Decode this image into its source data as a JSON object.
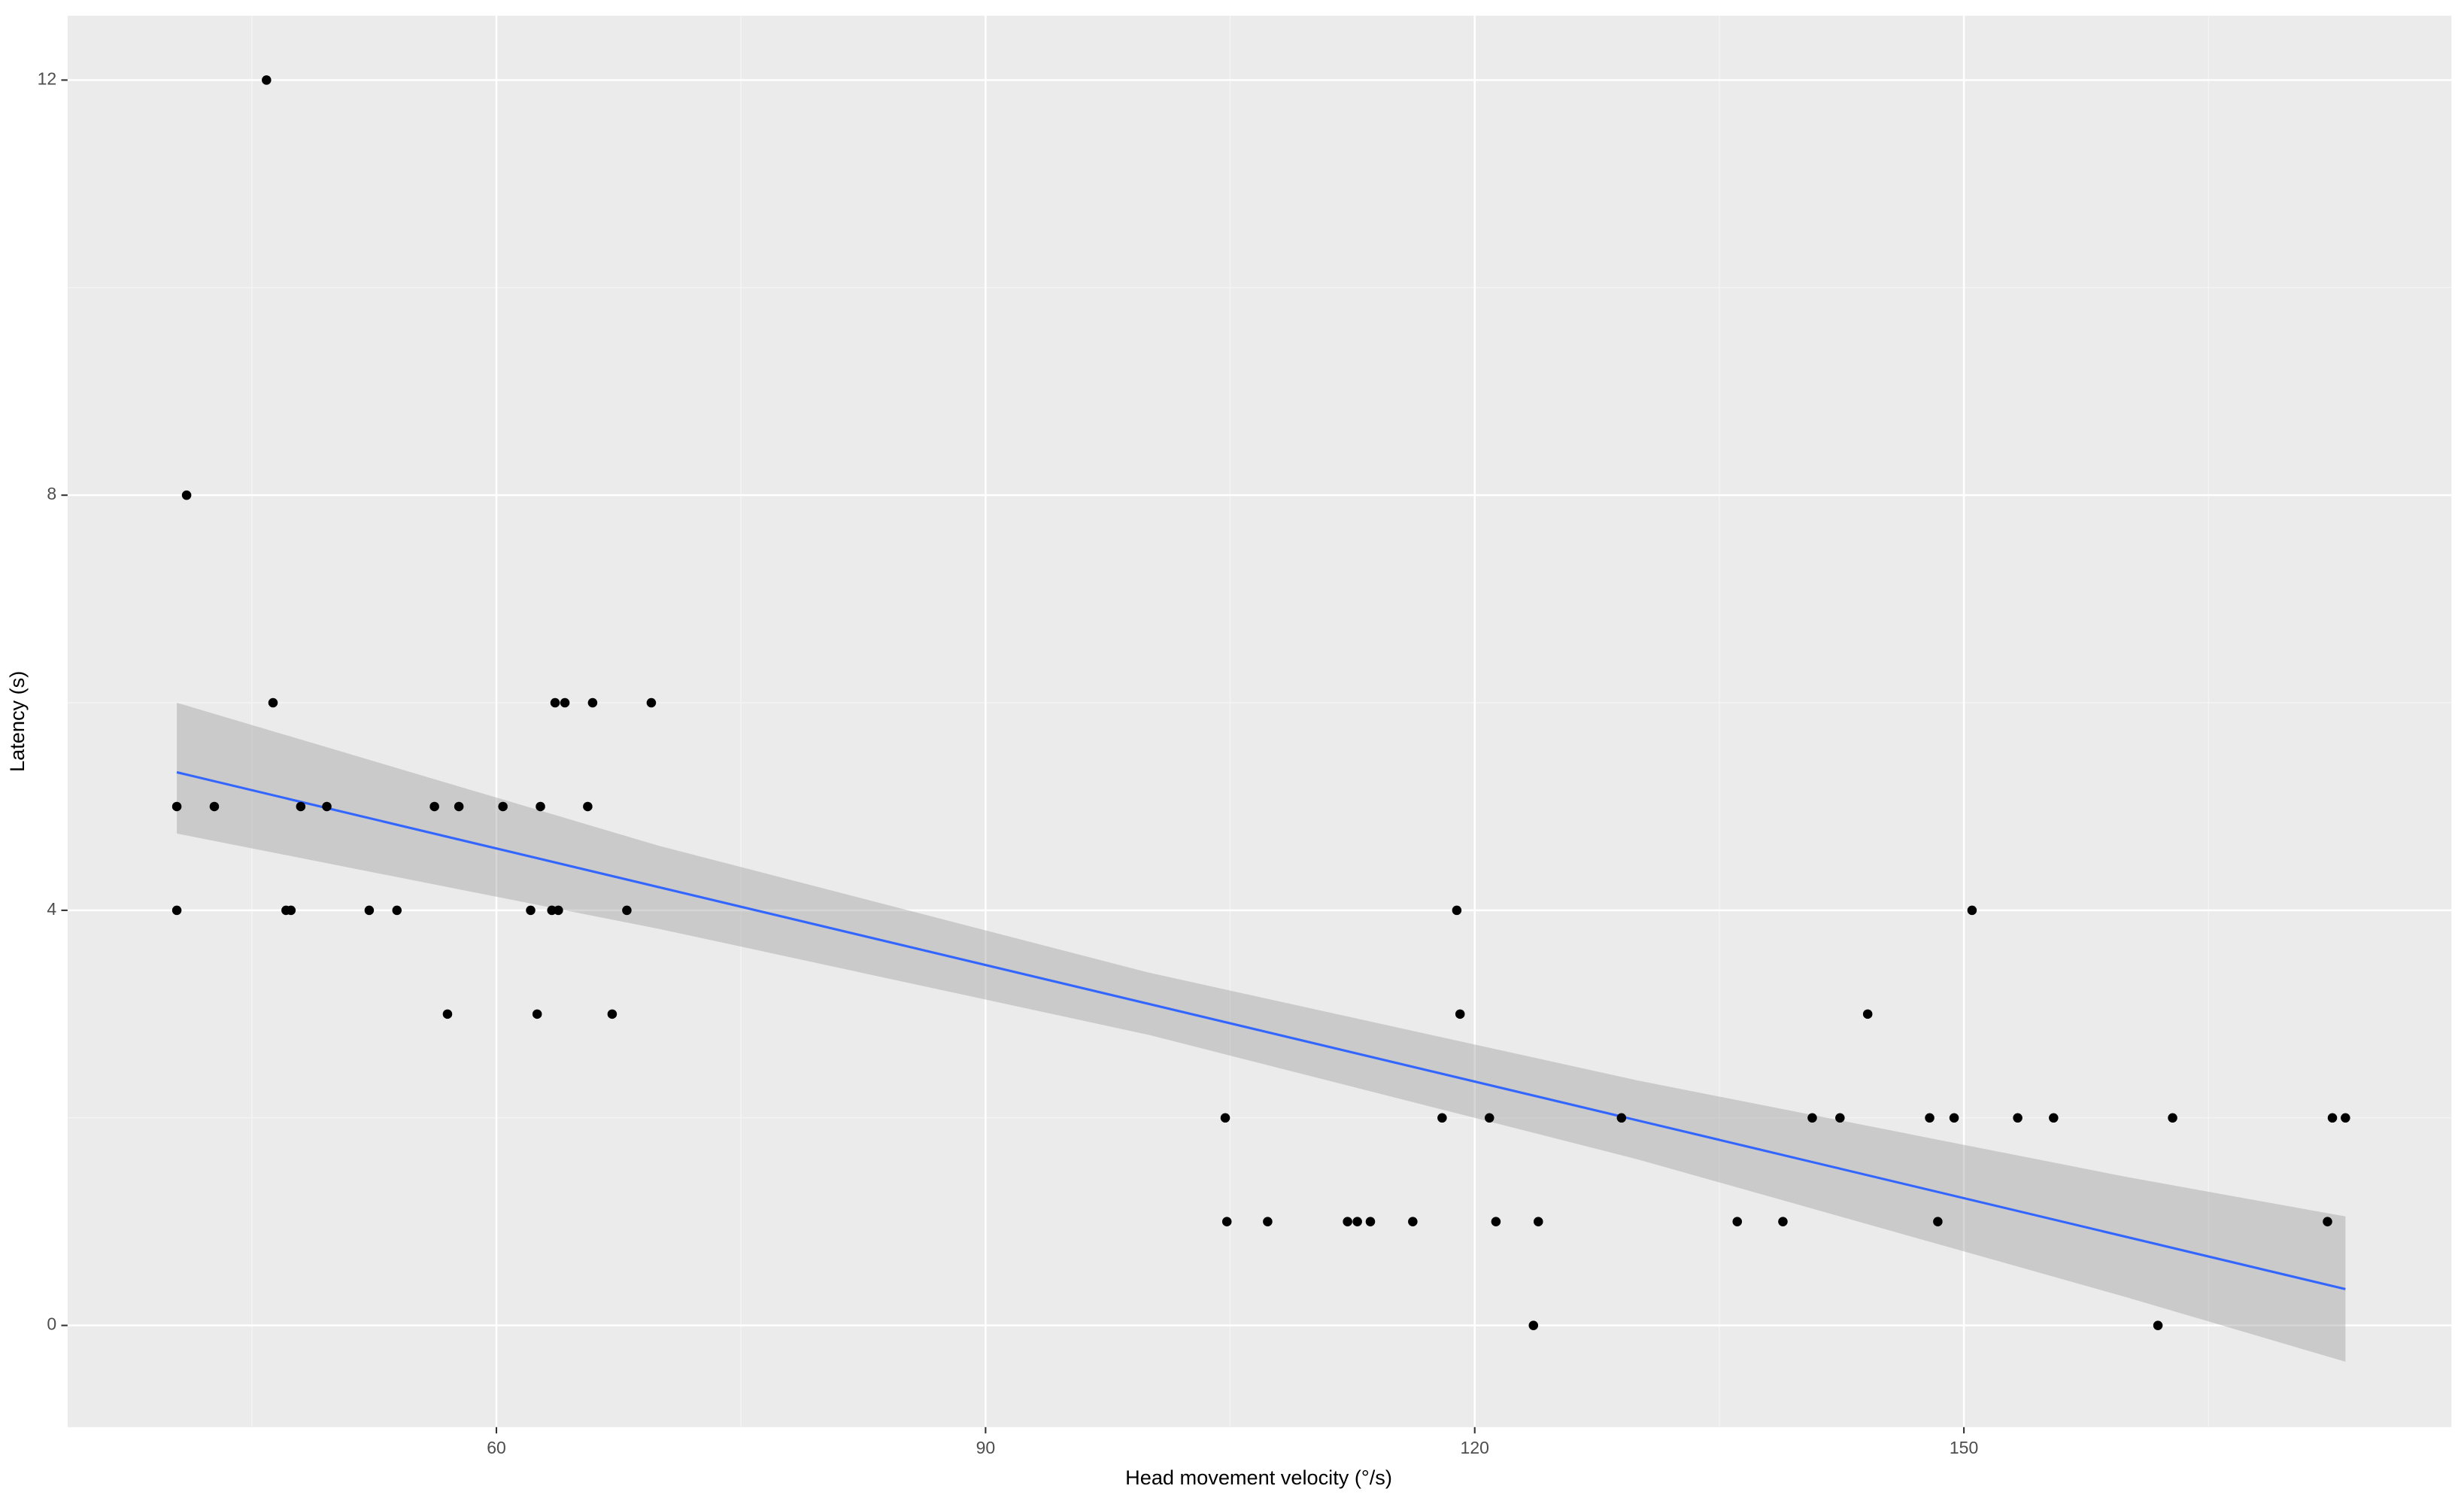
{
  "chart_data": {
    "type": "scatter",
    "x_label": "Head movement velocity (°/s)",
    "y_label": "Latency (s)",
    "x": [
      40.4,
      40.4,
      41.0,
      42.7,
      45.9,
      46.3,
      47.1,
      47.4,
      48.0,
      49.6,
      52.2,
      53.9,
      56.2,
      57.0,
      57.7,
      60.4,
      62.1,
      62.5,
      62.7,
      63.4,
      63.6,
      63.8,
      64.2,
      65.6,
      65.9,
      67.1,
      68.0,
      69.5,
      104.7,
      104.8,
      107.3,
      112.2,
      112.8,
      113.6,
      116.2,
      118.0,
      118.9,
      119.1,
      120.9,
      121.3,
      123.6,
      123.9,
      129.0,
      136.1,
      138.9,
      140.7,
      142.4,
      144.1,
      147.9,
      148.4,
      149.4,
      150.5,
      153.3,
      155.5,
      161.9,
      162.8,
      172.3,
      172.6,
      173.4
    ],
    "values": [
      5,
      4,
      8,
      5,
      12,
      6,
      4,
      4,
      5,
      5,
      4,
      4,
      5,
      3,
      5,
      5,
      4,
      3,
      5,
      4,
      6,
      4,
      6,
      5,
      6,
      3,
      4,
      6,
      2,
      1,
      1,
      1,
      1,
      1,
      1,
      2,
      4,
      3,
      2,
      1,
      0,
      1,
      2,
      1,
      1,
      2,
      2,
      3,
      2,
      1,
      2,
      4,
      2,
      2,
      0,
      2,
      1,
      2,
      2
    ],
    "color": "#000000",
    "fit": {
      "x": [
        40.4,
        173.4
      ],
      "y": [
        5.33,
        0.35
      ],
      "color": "#3366ff"
    },
    "band": {
      "x": [
        40.4,
        70,
        100,
        130,
        160,
        173.4
      ],
      "upper": [
        6.0,
        4.62,
        3.4,
        2.36,
        1.43,
        1.05
      ],
      "lower": [
        4.74,
        3.82,
        2.8,
        1.6,
        0.27,
        -0.35
      ],
      "color": "#999999"
    },
    "xlim": [
      33.7,
      179.9
    ],
    "ylim": [
      -0.98,
      12.62
    ],
    "xticks": [
      60,
      90,
      120,
      150
    ],
    "yticks": [
      0,
      4,
      8,
      12
    ],
    "xminor": [
      45,
      75,
      105,
      135,
      165
    ],
    "yminor": [
      2,
      6,
      10
    ],
    "grid": true
  }
}
